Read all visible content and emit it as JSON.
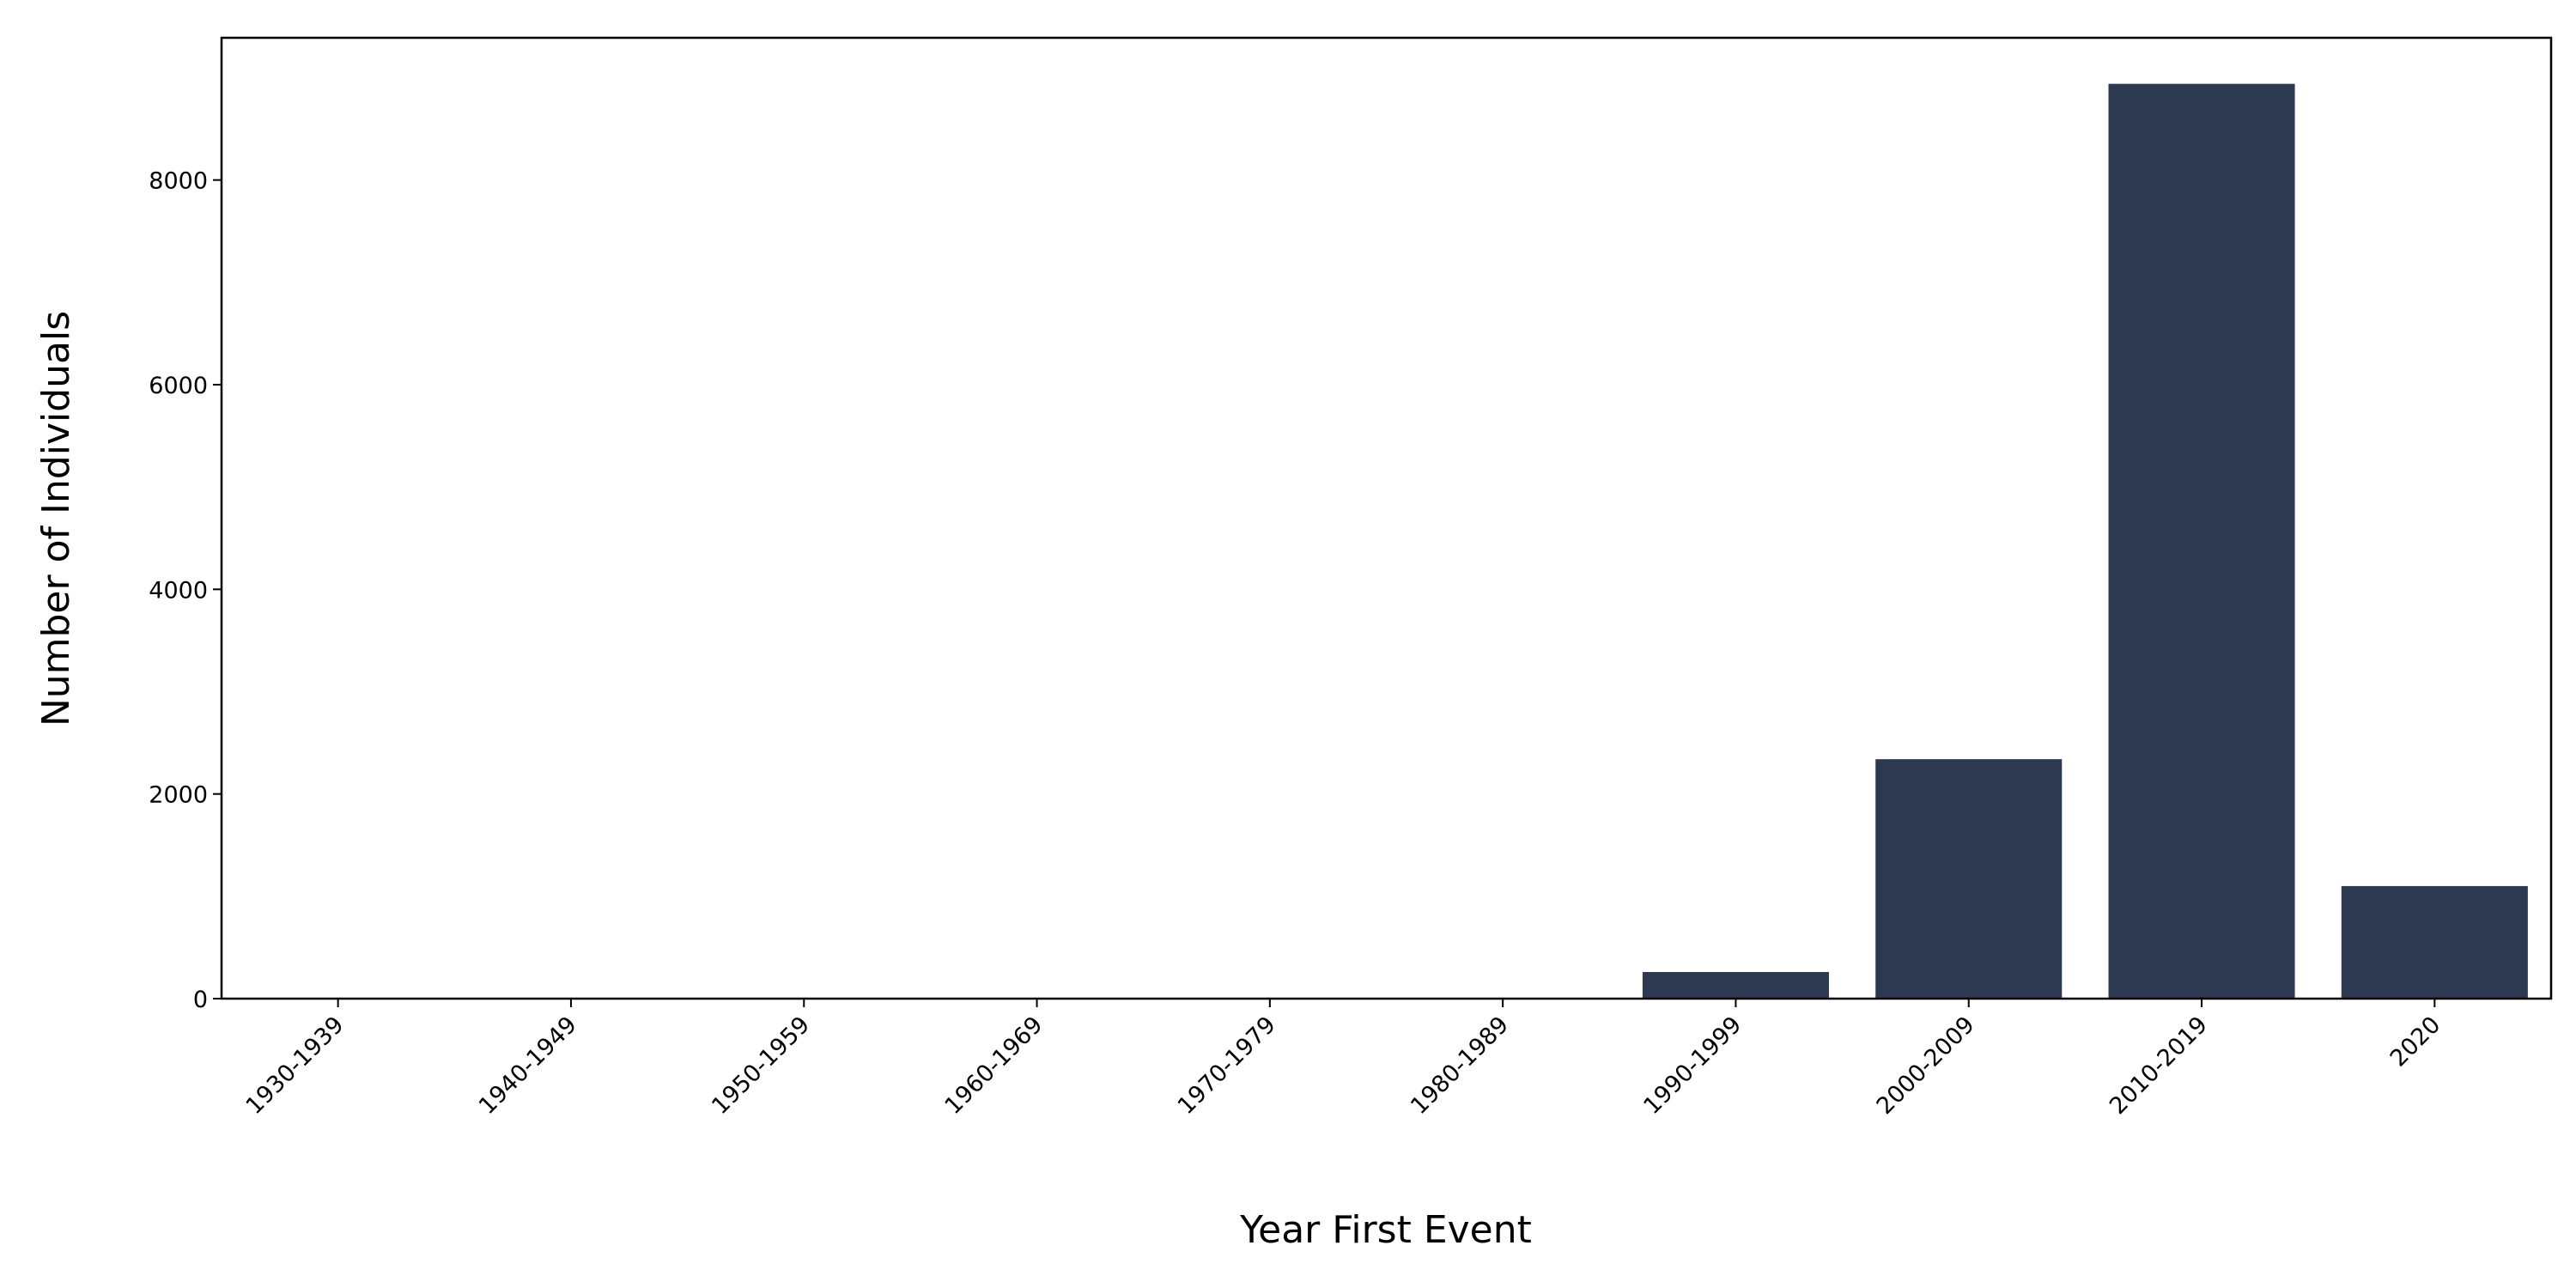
{
  "chart_data": {
    "type": "bar",
    "x_label": "Year First Event",
    "y_label": "Number of Individuals",
    "categories": [
      "1930-1939",
      "1940-1949",
      "1950-1959",
      "1960-1969",
      "1970-1979",
      "1980-1989",
      "1990-1999",
      "2000-2009",
      "2010-2019",
      "2020"
    ],
    "values": [
      0,
      0,
      0,
      0,
      0,
      0,
      260,
      2340,
      8940,
      1100
    ],
    "color": "#2d3950",
    "ylim": [
      0,
      9390
    ],
    "yticks": [
      0,
      2000,
      4000,
      6000,
      8000
    ],
    "grid": false
  }
}
